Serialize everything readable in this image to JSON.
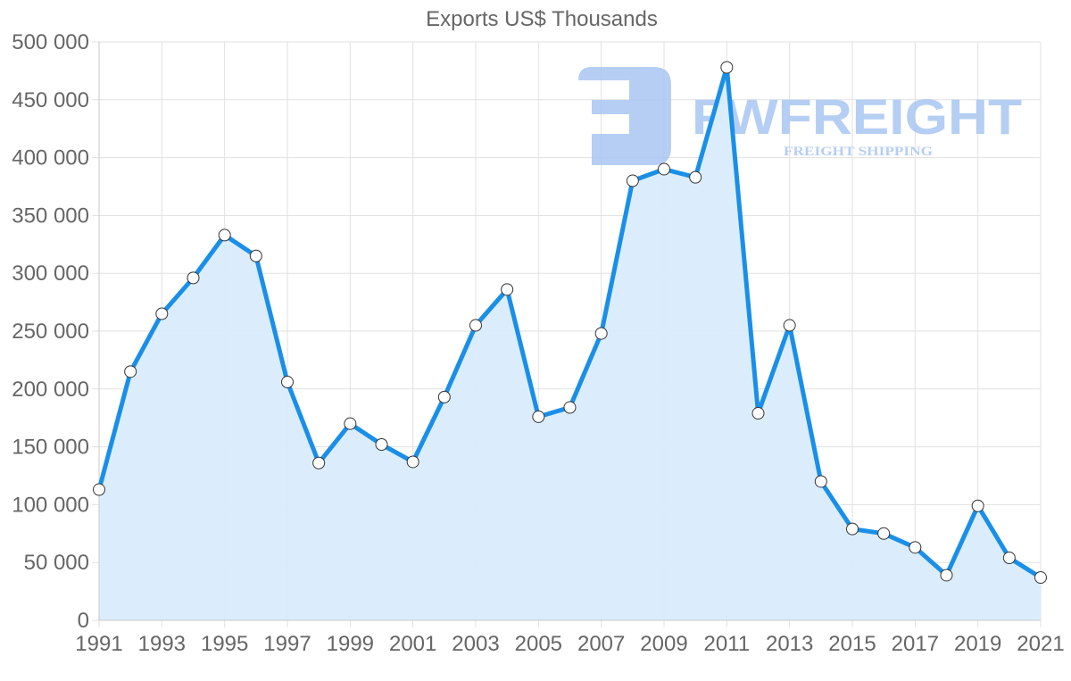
{
  "chart_data": {
    "type": "line",
    "title": "Exports US$ Thousands",
    "xlabel": "",
    "ylabel": "",
    "ylim": [
      0,
      500000
    ],
    "grid": true,
    "fill": true,
    "legend": "none",
    "x": [
      1991,
      1992,
      1993,
      1994,
      1995,
      1996,
      1997,
      1998,
      1999,
      2000,
      2001,
      2002,
      2003,
      2004,
      2005,
      2006,
      2007,
      2008,
      2009,
      2010,
      2011,
      2012,
      2013,
      2014,
      2015,
      2016,
      2017,
      2018,
      2019,
      2020,
      2021
    ],
    "series": [
      {
        "name": "Exports",
        "values": [
          113000,
          215000,
          265000,
          296000,
          333000,
          315000,
          206000,
          136000,
          170000,
          152000,
          137000,
          193000,
          255000,
          286000,
          176000,
          184000,
          248000,
          380000,
          390000,
          383000,
          478000,
          179000,
          255000,
          120000,
          79000,
          75000,
          63000,
          39000,
          99000,
          54000,
          37000
        ]
      }
    ],
    "y_ticks": [
      "0",
      "50 000",
      "100 000",
      "150 000",
      "200 000",
      "250 000",
      "300 000",
      "350 000",
      "400 000",
      "450 000",
      "500 000"
    ],
    "x_tick_labels": [
      "1991",
      "1993",
      "1995",
      "1997",
      "1999",
      "2001",
      "2003",
      "2005",
      "2007",
      "2009",
      "2011",
      "2013",
      "2015",
      "2017",
      "2019",
      "2021"
    ],
    "colors": {
      "line": "#1a8fe8",
      "fill": "#d9ecfc",
      "grid": "#e1e1e1",
      "axis_text": "#666666",
      "point_fill": "#ffffff",
      "point_stroke": "#333333"
    }
  },
  "watermark": {
    "brand": "FWFREIGHT",
    "tagline": "FREIGHT SHIPPING",
    "color": "#a9c6f2"
  }
}
